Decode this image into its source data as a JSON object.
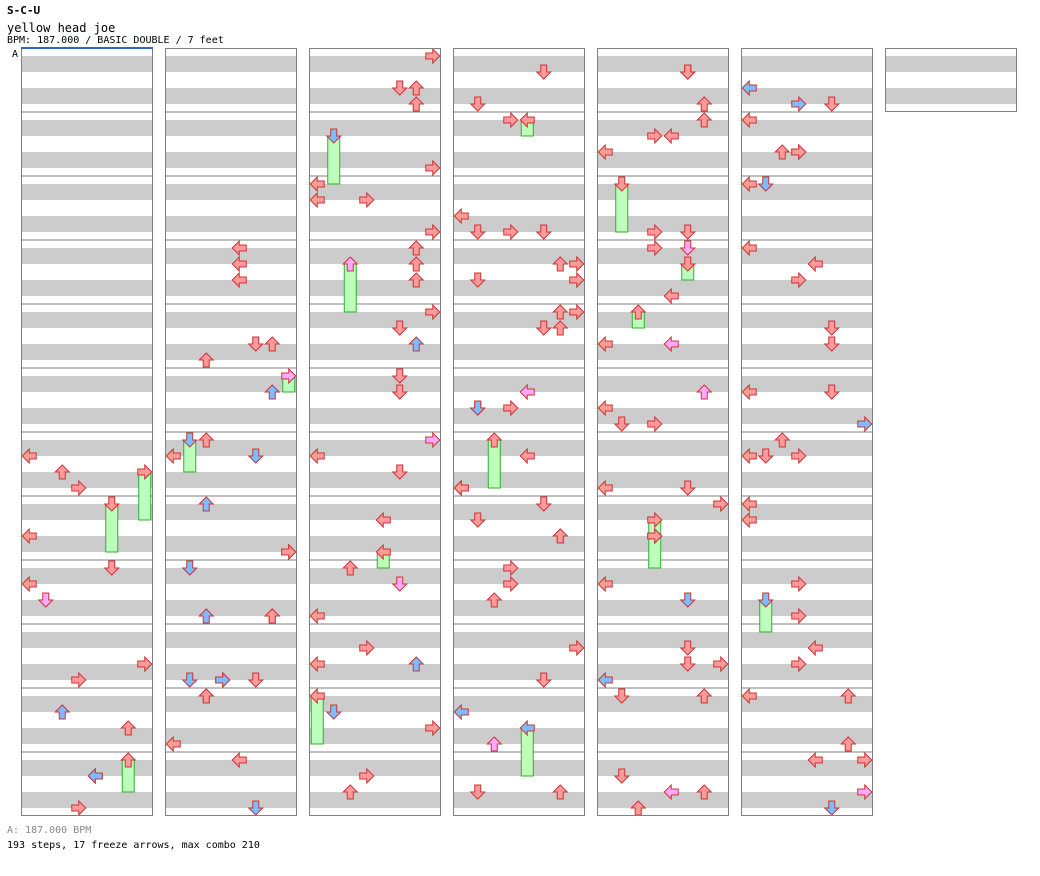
{
  "header": {
    "artist": "S-C-U",
    "title": "yellow head joe",
    "info": "BPM: 187.000 / BASIC DOUBLE / 7 feet",
    "section_label": "A"
  },
  "footer": {
    "bpm_line": "A: 187.000 BPM",
    "stats_line": "193 steps, 17 freeze arrows, max combo 210"
  },
  "colors": {
    "band": "#cccccc",
    "border": "#808080",
    "section_marker": "#3366cc",
    "arrow_red": "#ff9a9a",
    "arrow_blue": "#7cbcff",
    "arrow_pink": "#ffaaff",
    "freeze_fill": "#bbffbb",
    "freeze_stroke": "#33aa33"
  },
  "chart_data": {
    "type": "step-chart",
    "style": "BASIC DOUBLE",
    "panels": 8,
    "columns": 7,
    "measures_per_column": 12,
    "measures_in_last_column": 1,
    "lanes": [
      "1L",
      "1D",
      "1U",
      "1R",
      "2L",
      "2D",
      "2U",
      "2R"
    ],
    "notes": [
      [
        1,
        7
      ],
      [
        1,
        8
      ],
      [
        1,
        9
      ],
      [
        1,
        10
      ],
      [
        1,
        11
      ],
      [
        1,
        12
      ],
      [
        2,
        4
      ],
      [
        2,
        5
      ],
      [
        2,
        6
      ],
      [
        2,
        7
      ],
      [
        2,
        8
      ],
      [
        2,
        9
      ],
      [
        2,
        10
      ],
      [
        2,
        11
      ],
      [
        2,
        12
      ],
      [
        3,
        1
      ],
      [
        3,
        2
      ],
      [
        3,
        3
      ],
      [
        3,
        4
      ],
      [
        3,
        5
      ],
      [
        3,
        6
      ],
      [
        3,
        7
      ],
      [
        3,
        8
      ],
      [
        3,
        9
      ],
      [
        3,
        10
      ],
      [
        3,
        11
      ],
      [
        3,
        12
      ],
      [
        4,
        1
      ],
      [
        4,
        2
      ],
      [
        4,
        3
      ],
      [
        4,
        4
      ],
      [
        4,
        5
      ],
      [
        4,
        6
      ],
      [
        4,
        7
      ],
      [
        4,
        8
      ],
      [
        4,
        9
      ],
      [
        4,
        10
      ],
      [
        4,
        11
      ],
      [
        4,
        12
      ],
      [
        5,
        1
      ],
      [
        5,
        2
      ],
      [
        5,
        3
      ],
      [
        5,
        4
      ],
      [
        5,
        5
      ],
      [
        5,
        6
      ],
      [
        5,
        7
      ],
      [
        5,
        8
      ],
      [
        5,
        9
      ],
      [
        5,
        10
      ],
      [
        5,
        11
      ],
      [
        5,
        12
      ],
      [
        6,
        1
      ],
      [
        6,
        2
      ],
      [
        6,
        3
      ],
      [
        6,
        4
      ],
      [
        6,
        5
      ],
      [
        6,
        6
      ],
      [
        6,
        7
      ],
      [
        6,
        8
      ],
      [
        6,
        9
      ],
      [
        6,
        10
      ],
      [
        6,
        11
      ],
      [
        6,
        12
      ],
      [
        7,
        1
      ]
    ],
    "freeze_count": 17
  }
}
